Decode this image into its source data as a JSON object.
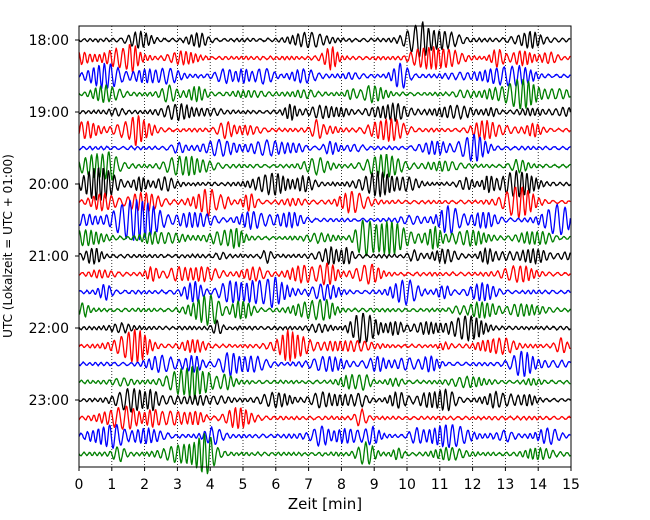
{
  "chart_data": {
    "type": "line",
    "title": "",
    "xlabel": "Zeit  [min]",
    "ylabel": "UTC (Lokalzeit = UTC + 01:00)",
    "xlim": [
      0,
      15
    ],
    "x_ticks": [
      0,
      1,
      2,
      3,
      4,
      5,
      6,
      7,
      8,
      9,
      10,
      11,
      12,
      13,
      14,
      15
    ],
    "x_tick_labels": [
      "0",
      "1",
      "2",
      "3",
      "4",
      "5",
      "6",
      "7",
      "8",
      "9",
      "10",
      "11",
      "12",
      "13",
      "14",
      "15"
    ],
    "y_tick_labels": [
      "18:00",
      "19:00",
      "20:00",
      "21:00",
      "22:00",
      "23:00"
    ],
    "y_tick_rows": [
      0,
      4,
      8,
      12,
      16,
      20
    ],
    "rows_per_hour": 4,
    "row_count": 24,
    "row_colors": [
      "#000000",
      "#ff0000",
      "#0000ff",
      "#008000"
    ],
    "vertical_grid": "dotted",
    "legend": "none"
  }
}
